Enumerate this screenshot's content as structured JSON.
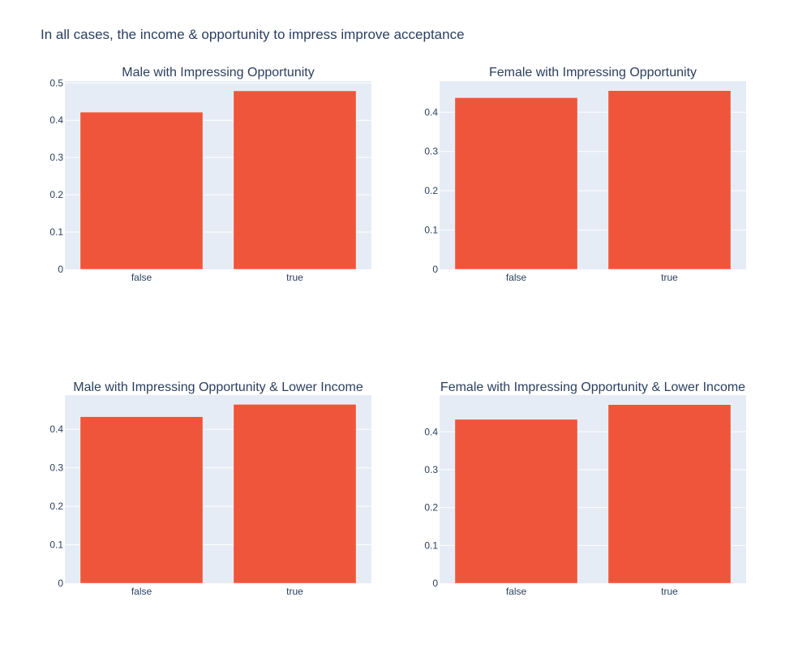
{
  "title": "In all cases, the income & opportunity to impress improve acceptance",
  "colors": {
    "bar": "#ef553b",
    "plot_bg": "#e5ecf6",
    "grid": "#ffffff",
    "text": "#2a3f5f"
  },
  "chart_data": [
    {
      "type": "bar",
      "title": "Male with Impressing Opportunity",
      "categories": [
        "false",
        "true"
      ],
      "values": [
        0.422,
        0.479
      ],
      "ylim": [
        0,
        0.505
      ],
      "yticks": [
        0,
        0.1,
        0.2,
        0.3,
        0.4,
        0.5
      ],
      "ytick_labels": [
        "0",
        "0.1",
        "0.2",
        "0.3",
        "0.4",
        "0.5"
      ],
      "xlabel": "",
      "ylabel": "",
      "grid": true
    },
    {
      "type": "bar",
      "title": "Female with Impressing Opportunity",
      "categories": [
        "false",
        "true"
      ],
      "values": [
        0.437,
        0.455
      ],
      "ylim": [
        0,
        0.479
      ],
      "yticks": [
        0,
        0.1,
        0.2,
        0.3,
        0.4
      ],
      "ytick_labels": [
        "0",
        "0.1",
        "0.2",
        "0.3",
        "0.4"
      ],
      "xlabel": "",
      "ylabel": "",
      "grid": true
    },
    {
      "type": "bar",
      "title": "Male with Impressing Opportunity & Lower Income",
      "categories": [
        "false",
        "true"
      ],
      "values": [
        0.433,
        0.465
      ],
      "ylim": [
        0,
        0.489
      ],
      "yticks": [
        0,
        0.1,
        0.2,
        0.3,
        0.4
      ],
      "ytick_labels": [
        "0",
        "0.1",
        "0.2",
        "0.3",
        "0.4"
      ],
      "xlabel": "",
      "ylabel": "",
      "grid": true
    },
    {
      "type": "bar",
      "title": "Female with Impressing Opportunity & Lower Income",
      "categories": [
        "false",
        "true"
      ],
      "values": [
        0.433,
        0.472
      ],
      "ylim": [
        0,
        0.497
      ],
      "yticks": [
        0,
        0.1,
        0.2,
        0.3,
        0.4
      ],
      "ytick_labels": [
        "0",
        "0.1",
        "0.2",
        "0.3",
        "0.4"
      ],
      "xlabel": "",
      "ylabel": "",
      "grid": true
    }
  ]
}
